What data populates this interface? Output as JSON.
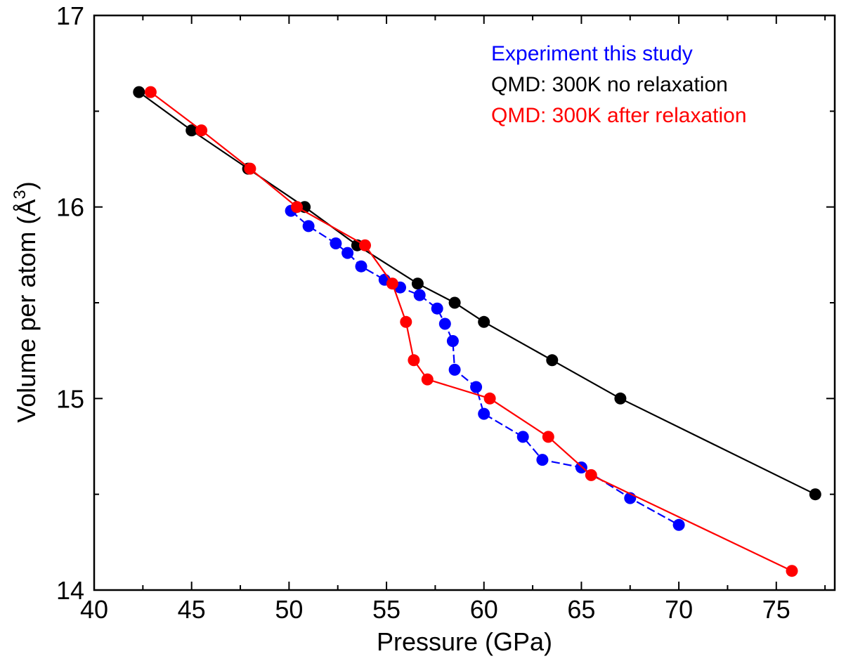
{
  "chart_data": {
    "type": "line",
    "xlabel": "Pressure (GPa)",
    "ylabel": "Volume per atom (Å",
    "ylabel_sup": "3",
    "ylabel_end": ")",
    "xlim": [
      40,
      78
    ],
    "ylim": [
      14,
      17
    ],
    "xticks": [
      "40",
      "45",
      "50",
      "55",
      "60",
      "65",
      "70",
      "75"
    ],
    "yticks": [
      "14",
      "15",
      "16",
      "17"
    ],
    "grid": false,
    "legend_position": "top-right",
    "series": [
      {
        "name": "Experiment this study",
        "color": "#0000ff",
        "line_style": "dashed",
        "points": [
          [
            50.1,
            15.98
          ],
          [
            51.0,
            15.9
          ],
          [
            52.4,
            15.81
          ],
          [
            53.0,
            15.76
          ],
          [
            53.7,
            15.69
          ],
          [
            54.9,
            15.62
          ],
          [
            55.7,
            15.58
          ],
          [
            56.7,
            15.54
          ],
          [
            57.6,
            15.47
          ],
          [
            58.0,
            15.39
          ],
          [
            58.4,
            15.3
          ],
          [
            58.5,
            15.15
          ],
          [
            59.6,
            15.06
          ],
          [
            60.0,
            14.92
          ],
          [
            62.0,
            14.8
          ],
          [
            63.0,
            14.68
          ],
          [
            65.0,
            14.64
          ],
          [
            67.5,
            14.48
          ],
          [
            70.0,
            14.34
          ]
        ]
      },
      {
        "name": "QMD: 300K no relaxation",
        "color": "#000000",
        "line_style": "solid",
        "points": [
          [
            42.3,
            16.6
          ],
          [
            45.0,
            16.4
          ],
          [
            47.9,
            16.2
          ],
          [
            50.8,
            16.0
          ],
          [
            53.5,
            15.8
          ],
          [
            56.6,
            15.6
          ],
          [
            58.5,
            15.5
          ],
          [
            60.0,
            15.4
          ],
          [
            63.5,
            15.2
          ],
          [
            67.0,
            15.0
          ],
          [
            77.0,
            14.5
          ]
        ]
      },
      {
        "name": "QMD: 300K after relaxation",
        "color": "#ff0000",
        "line_style": "solid",
        "points": [
          [
            42.9,
            16.6
          ],
          [
            45.5,
            16.4
          ],
          [
            48.0,
            16.2
          ],
          [
            50.4,
            16.0
          ],
          [
            53.9,
            15.8
          ],
          [
            55.3,
            15.6
          ],
          [
            56.0,
            15.4
          ],
          [
            56.4,
            15.2
          ],
          [
            57.1,
            15.1
          ],
          [
            60.3,
            15.0
          ],
          [
            63.3,
            14.8
          ],
          [
            65.5,
            14.6
          ],
          [
            75.8,
            14.1
          ]
        ]
      }
    ]
  }
}
